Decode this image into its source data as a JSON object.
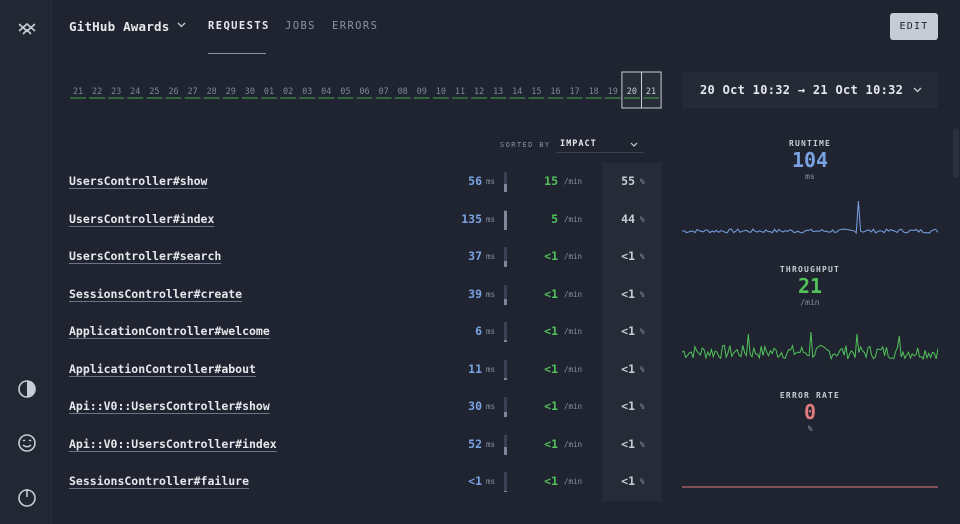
{
  "app": {
    "title": "GitHub Awards"
  },
  "nav": {
    "tabs": [
      {
        "label": "REQUESTS",
        "active": true
      },
      {
        "label": "JOBS",
        "active": false
      },
      {
        "label": "ERRORS",
        "active": false
      }
    ],
    "edit_label": "EDIT"
  },
  "timeline": {
    "labels": [
      "21",
      "22",
      "23",
      "24",
      "25",
      "26",
      "27",
      "28",
      "29",
      "30",
      "01",
      "02",
      "03",
      "04",
      "05",
      "06",
      "07",
      "08",
      "09",
      "10",
      "11",
      "12",
      "13",
      "14",
      "15",
      "16",
      "17",
      "18",
      "19",
      "20",
      "21"
    ],
    "selected_from": "20",
    "selected_to": "21"
  },
  "date_range": {
    "label": "20 Oct 10:32 → 21 Oct 10:32"
  },
  "sort": {
    "label": "SORTED BY",
    "value": "IMPACT"
  },
  "rows": [
    {
      "name": "UsersController#show",
      "runtime": "56",
      "runtime_unit": "ms",
      "throughput": "15",
      "throughput_unit": "/min",
      "pct": "55",
      "pct_unit": "%",
      "runtime_level": 0.4
    },
    {
      "name": "UsersController#index",
      "runtime": "135",
      "runtime_unit": "ms",
      "throughput": "5",
      "throughput_unit": "/min",
      "pct": "44",
      "pct_unit": "%",
      "runtime_level": 0.95
    },
    {
      "name": "UsersController#search",
      "runtime": "37",
      "runtime_unit": "ms",
      "throughput": "<1",
      "throughput_unit": "/min",
      "pct": "<1",
      "pct_unit": "%",
      "runtime_level": 0.3
    },
    {
      "name": "SessionsController#create",
      "runtime": "39",
      "runtime_unit": "ms",
      "throughput": "<1",
      "throughput_unit": "/min",
      "pct": "<1",
      "pct_unit": "%",
      "runtime_level": 0.3
    },
    {
      "name": "ApplicationController#welcome",
      "runtime": "6",
      "runtime_unit": "ms",
      "throughput": "<1",
      "throughput_unit": "/min",
      "pct": "<1",
      "pct_unit": "%",
      "runtime_level": 0.08
    },
    {
      "name": "ApplicationController#about",
      "runtime": "11",
      "runtime_unit": "ms",
      "throughput": "<1",
      "throughput_unit": "/min",
      "pct": "<1",
      "pct_unit": "%",
      "runtime_level": 0.12
    },
    {
      "name": "Api::V0::UsersController#show",
      "runtime": "30",
      "runtime_unit": "ms",
      "throughput": "<1",
      "throughput_unit": "/min",
      "pct": "<1",
      "pct_unit": "%",
      "runtime_level": 0.25
    },
    {
      "name": "Api::V0::UsersController#index",
      "runtime": "52",
      "runtime_unit": "ms",
      "throughput": "<1",
      "throughput_unit": "/min",
      "pct": "<1",
      "pct_unit": "%",
      "runtime_level": 0.38
    },
    {
      "name": "SessionsController#failure",
      "runtime": "<1",
      "runtime_unit": "ms",
      "throughput": "<1",
      "throughput_unit": "/min",
      "pct": "<1",
      "pct_unit": "%",
      "runtime_level": 0.02
    }
  ],
  "metrics": {
    "runtime": {
      "label": "RUNTIME",
      "value": "104",
      "unit": "ms",
      "color": "#7aa2e3"
    },
    "throughput": {
      "label": "THROUGHPUT",
      "value": "21",
      "unit": "/min",
      "color": "#52c15b"
    },
    "error_rate": {
      "label": "ERROR RATE",
      "value": "0",
      "unit": "%",
      "color": "#e07a7f"
    }
  },
  "sidebar": {
    "icons": [
      "logo-icon",
      "theme-toggle-icon",
      "smiley-icon",
      "power-icon"
    ]
  }
}
